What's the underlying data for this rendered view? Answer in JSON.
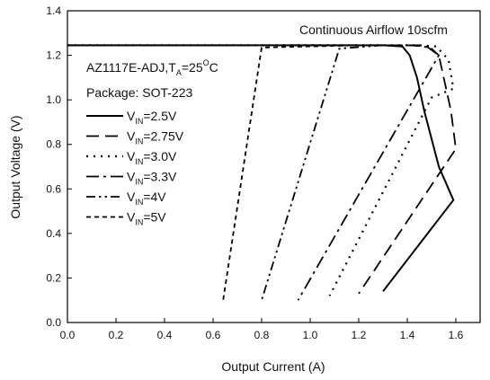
{
  "chart_data": {
    "type": "line",
    "xlabel": "Output Current (A)",
    "ylabel": "Output Voltage (V)",
    "xlim": [
      0.0,
      1.7
    ],
    "ylim": [
      0.0,
      1.4
    ],
    "x_ticks": [
      "0.0",
      "0.2",
      "0.4",
      "0.6",
      "0.8",
      "1.0",
      "1.2",
      "1.4",
      "1.6"
    ],
    "y_ticks": [
      "0.0",
      "0.2",
      "0.4",
      "0.6",
      "0.8",
      "1.0",
      "1.2",
      "1.4"
    ],
    "annotation_top": "Continuous Airflow 10scfm",
    "device_label": {
      "prefix": "AZ1117E-ADJ,T",
      "sub": "A",
      "suffix": "=25",
      "sup": "O",
      "unit": "C"
    },
    "package_label": "Package: SOT-223",
    "grid": false,
    "legend_position": "left",
    "series": [
      {
        "name": "VIN=2.5V",
        "legend": {
          "main": "V",
          "sub": "IN",
          "value": "=2.5V"
        },
        "dash": "solid",
        "points": [
          [
            0.0,
            1.245
          ],
          [
            1.3,
            1.245
          ],
          [
            1.38,
            1.24
          ],
          [
            1.41,
            1.2
          ],
          [
            1.44,
            1.1
          ],
          [
            1.47,
            0.95
          ],
          [
            1.53,
            0.7
          ],
          [
            1.59,
            0.55
          ],
          [
            1.3,
            0.14
          ]
        ]
      },
      {
        "name": "VIN=2.75V",
        "legend": {
          "main": "V",
          "sub": "IN",
          "value": "=2.75V"
        },
        "dash": "long-dash",
        "points": [
          [
            0.0,
            1.245
          ],
          [
            1.4,
            1.245
          ],
          [
            1.48,
            1.24
          ],
          [
            1.53,
            1.2
          ],
          [
            1.58,
            0.95
          ],
          [
            1.6,
            0.78
          ],
          [
            1.2,
            0.13
          ]
        ]
      },
      {
        "name": "VIN=3.0V",
        "legend": {
          "main": "V",
          "sub": "IN",
          "value": "=3.0V"
        },
        "dash": "dotted",
        "points": [
          [
            0.0,
            1.245
          ],
          [
            1.45,
            1.245
          ],
          [
            1.52,
            1.24
          ],
          [
            1.57,
            1.18
          ],
          [
            1.59,
            1.05
          ],
          [
            1.5,
            1.01
          ],
          [
            1.08,
            0.12
          ]
        ]
      },
      {
        "name": "VIN=3.3V",
        "legend": {
          "main": "V",
          "sub": "IN",
          "value": "=3.3V"
        },
        "dash": "dash-dot",
        "points": [
          [
            0.0,
            1.245
          ],
          [
            1.45,
            1.245
          ],
          [
            1.5,
            1.23
          ],
          [
            1.53,
            1.2
          ],
          [
            0.95,
            0.1
          ]
        ]
      },
      {
        "name": "VIN=4V",
        "legend": {
          "main": "V",
          "sub": "IN",
          "value": "=4V"
        },
        "dash": "dash-dot-dot",
        "points": [
          [
            0.0,
            1.245
          ],
          [
            1.3,
            1.245
          ],
          [
            1.12,
            1.23
          ],
          [
            0.8,
            0.1
          ]
        ]
      },
      {
        "name": "VIN=5V",
        "legend": {
          "main": "V",
          "sub": "IN",
          "value": "=5V"
        },
        "dash": "short-dash",
        "points": [
          [
            0.0,
            1.245
          ],
          [
            1.2,
            1.245
          ],
          [
            0.8,
            1.235
          ],
          [
            0.64,
            0.09
          ]
        ]
      }
    ]
  }
}
